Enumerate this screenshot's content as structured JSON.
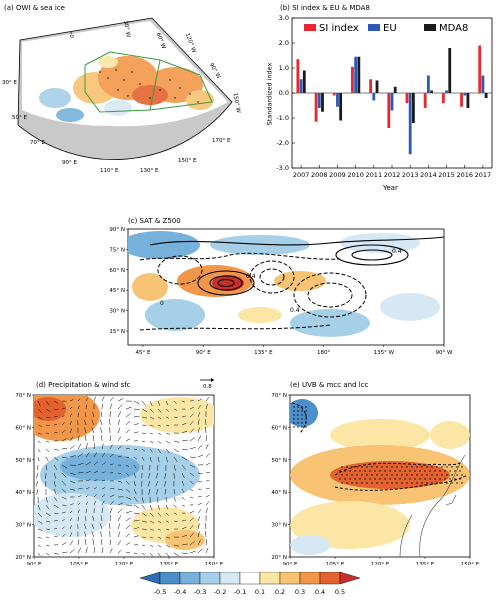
{
  "panels": {
    "a": {
      "title": "(a) OWI & sea ice",
      "lon_labels": [
        "60° W",
        "30° W",
        "0°",
        "30° E",
        "50° E",
        "70° E",
        "90° E",
        "110° E",
        "130° E",
        "150° E",
        "170° E",
        "150° W",
        "120° W",
        "90° W"
      ]
    },
    "c": {
      "title": "(c) SAT & Z500",
      "y_ticks": [
        "90° N",
        "75° N",
        "60° N",
        "45° N",
        "30° N",
        "15° N"
      ],
      "x_ticks": [
        "45° E",
        "90° E",
        "135° E",
        "180°",
        "135° W",
        "90° W"
      ],
      "contour_labels": [
        "0",
        "0.4",
        "0.4",
        "0.4"
      ]
    },
    "d": {
      "title": "(d) Precipitation & wind sfc",
      "ref_vector": "0.8",
      "y_ticks": [
        "70° N",
        "60° N",
        "50° N",
        "40° N",
        "30° N",
        "20° N"
      ],
      "x_ticks": [
        "90° E",
        "105° E",
        "120° E",
        "135° E",
        "150° E"
      ]
    },
    "e": {
      "title": "(e) UVB & mcc and lcc",
      "y_ticks": [
        "70° N",
        "60° N",
        "50° N",
        "40° N",
        "30° N",
        "20° N"
      ],
      "x_ticks": [
        "90° E",
        "105° E",
        "120° E",
        "135° E",
        "150° E"
      ]
    }
  },
  "colorbar": {
    "labels": [
      "-0.5",
      "-0.4",
      "-0.3",
      "-0.2",
      "-0.1",
      "0.1",
      "0.2",
      "0.3",
      "0.4",
      "0.5"
    ],
    "colors": [
      "#2f6cb4",
      "#4c8fcb",
      "#76b1dc",
      "#a6cfe8",
      "#d5e8f3",
      "#ffffff",
      "#fce6a6",
      "#f8c372",
      "#f2974a",
      "#e4622f",
      "#c6302a"
    ]
  },
  "chart_data": [
    {
      "type": "bar",
      "title": "(b) SI index & EU & MDA8",
      "xlabel": "Year",
      "ylabel": "Standardized index",
      "ylim": [
        -3,
        3
      ],
      "y_ticks": [
        "3.0",
        "2.0",
        "1.0",
        "0.0",
        "-1.0",
        "-2.0",
        "-3.0"
      ],
      "categories": [
        "2007",
        "2008",
        "2009",
        "2010",
        "2011",
        "2012",
        "2013",
        "2014",
        "2015",
        "2016",
        "2017"
      ],
      "series": [
        {
          "name": "SI index",
          "color": "#e8262c",
          "values": [
            1.35,
            -1.15,
            -0.1,
            1.05,
            0.55,
            -1.4,
            -0.4,
            -0.6,
            -0.4,
            -0.55,
            1.9
          ]
        },
        {
          "name": "EU",
          "color": "#2c59b7",
          "values": [
            0.55,
            -0.6,
            -0.55,
            1.45,
            -0.3,
            -0.7,
            -2.45,
            0.7,
            0.1,
            -0.1,
            0.7
          ]
        },
        {
          "name": "MDA8",
          "color": "#1a1a1a",
          "values": [
            0.9,
            -0.75,
            -1.1,
            1.45,
            0.5,
            0.25,
            -1.2,
            0.1,
            1.8,
            -0.6,
            -0.2
          ]
        }
      ]
    }
  ]
}
